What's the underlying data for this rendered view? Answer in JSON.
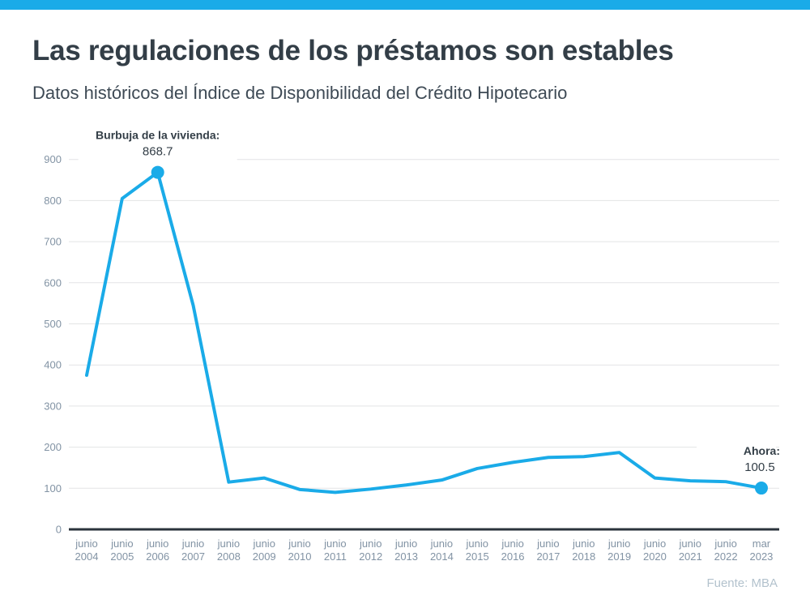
{
  "page": {
    "title": "Las regulaciones de los préstamos son estables",
    "subtitle": "Datos históricos del Índice de Disponibilidad del Crédito Hipotecario",
    "source": "Fuente: MBA"
  },
  "colors": {
    "accent_bar": "#1aabe8",
    "title_text": "#333e47",
    "subtitle_text": "#3e4a55",
    "tick_label": "#8293a4",
    "gridline": "#e3e4e5",
    "axis_line": "#2a333b",
    "annotation_text": "#333e47",
    "source_text": "#b3c2cd"
  },
  "chart_data": {
    "type": "line",
    "x_labels": [
      [
        "junio",
        "2004"
      ],
      [
        "junio",
        "2005"
      ],
      [
        "junio",
        "2006"
      ],
      [
        "junio",
        "2007"
      ],
      [
        "junio",
        "2008"
      ],
      [
        "junio",
        "2009"
      ],
      [
        "junio",
        "2010"
      ],
      [
        "junio",
        "2011"
      ],
      [
        "junio",
        "2012"
      ],
      [
        "junio",
        "2013"
      ],
      [
        "junio",
        "2014"
      ],
      [
        "junio",
        "2015"
      ],
      [
        "junio",
        "2016"
      ],
      [
        "junio",
        "2017"
      ],
      [
        "junio",
        "2018"
      ],
      [
        "junio",
        "2019"
      ],
      [
        "junio",
        "2020"
      ],
      [
        "junio",
        "2021"
      ],
      [
        "junio",
        "2022"
      ],
      [
        "mar",
        "2023"
      ]
    ],
    "values": [
      375,
      805,
      868.7,
      545,
      115,
      125,
      97,
      90,
      98,
      108,
      120,
      148,
      163,
      175,
      177,
      187,
      125,
      118,
      116,
      100.5
    ],
    "ylim": [
      0,
      900
    ],
    "ytick_step": 100,
    "grid": true,
    "legend": "none",
    "line_color": "#1aabe8",
    "marker_color": "#1aabe8",
    "marker_indices": [
      2,
      19
    ],
    "annotations": [
      {
        "index": 2,
        "label": "Burbuja de la vivienda:",
        "value": "868.7",
        "align": "center"
      },
      {
        "index": 19,
        "label": "Ahora:",
        "value": "100.5",
        "align": "end"
      }
    ]
  }
}
